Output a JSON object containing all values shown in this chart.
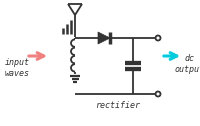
{
  "bg_color": "#ffffff",
  "line_color": "#333333",
  "pink_arrow_color": "#f08080",
  "cyan_arrow_color": "#00ccdd",
  "text_color": "#333333",
  "figsize": [
    2.0,
    1.26
  ],
  "dpi": 100,
  "input_label": "input\nwaves",
  "output_label": "dc\noutput",
  "rectifier_label": "rectifier"
}
